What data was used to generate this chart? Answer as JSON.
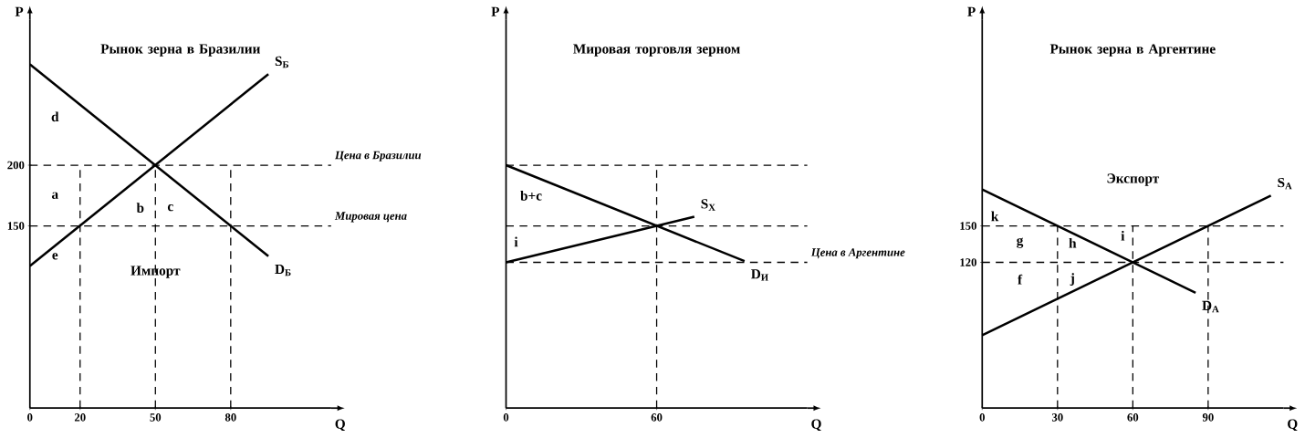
{
  "chart_data": [
    {
      "type": "line",
      "title": "Рынок зерна в Бразилии",
      "xlabel": "Q",
      "ylabel": "P",
      "marker": "none",
      "line_style": "solid",
      "xlim": [
        0,
        120
      ],
      "ylim": [
        0,
        320
      ],
      "xticks": [
        0,
        20,
        50,
        80
      ],
      "yticks": [
        150,
        200
      ],
      "series": [
        {
          "name": "S$_{Б}$",
          "color": "#000000",
          "x": [
            0,
            95
          ],
          "values": [
            117,
            275
          ]
        },
        {
          "name": "D$_{Б}$",
          "color": "#000000",
          "x": [
            0,
            95
          ],
          "values": [
            283,
            125
          ]
        }
      ],
      "ref_lines": [
        {
          "axis": "y",
          "value": 200,
          "label": "Цена в Бразилии",
          "line_style": "dashed"
        },
        {
          "axis": "y",
          "value": 150,
          "label": "Мировая цена",
          "line_style": "dashed"
        },
        {
          "axis": "x",
          "value": 20,
          "line_style": "dashed"
        },
        {
          "axis": "x",
          "value": 50,
          "line_style": "dashed"
        },
        {
          "axis": "x",
          "value": 80,
          "line_style": "dashed"
        }
      ],
      "annotations": [
        "d",
        "a",
        "b",
        "c",
        "e",
        "Импорт"
      ]
    },
    {
      "type": "line",
      "title": "Мировая торговля зерном",
      "xlabel": "Q",
      "ylabel": "P",
      "marker": "none",
      "line_style": "solid",
      "tick_labels": "x",
      "xlim": [
        0,
        120
      ],
      "ylim": [
        0,
        320
      ],
      "xticks": [
        0,
        60
      ],
      "series": [
        {
          "name": "S$_{Х}$",
          "color": "#000000",
          "x": [
            0,
            75
          ],
          "values": [
            120,
            157.5
          ]
        },
        {
          "name": "D$_{И}$",
          "color": "#000000",
          "x": [
            0,
            95
          ],
          "values": [
            200,
            121
          ]
        }
      ],
      "ref_lines": [
        {
          "axis": "y",
          "value": 200,
          "line_style": "dashed"
        },
        {
          "axis": "y",
          "value": 150,
          "line_style": "dashed"
        },
        {
          "axis": "y",
          "value": 120,
          "label": "Цена в Аргентине",
          "line_style": "dashed"
        },
        {
          "axis": "x",
          "value": 60,
          "line_style": "dashed"
        }
      ],
      "annotations": [
        "b+c",
        "i"
      ]
    },
    {
      "type": "line",
      "title": "Рынок зерна в Аргентине",
      "xlabel": "Q",
      "ylabel": "P",
      "marker": "none",
      "line_style": "solid",
      "xlim": [
        0,
        120
      ],
      "ylim": [
        0,
        320
      ],
      "xticks": [
        0,
        30,
        60,
        90
      ],
      "yticks": [
        120,
        150
      ],
      "series": [
        {
          "name": "S$_{A}$",
          "color": "#000000",
          "x": [
            0,
            115
          ],
          "values": [
            60,
            175
          ]
        },
        {
          "name": "D$_{A}$",
          "color": "#000000",
          "x": [
            0,
            85
          ],
          "values": [
            180,
            95
          ]
        }
      ],
      "ref_lines": [
        {
          "axis": "y",
          "value": 150,
          "line_style": "dashed"
        },
        {
          "axis": "y",
          "value": 120,
          "line_style": "dashed"
        },
        {
          "axis": "x",
          "value": 30,
          "line_style": "dashed"
        },
        {
          "axis": "x",
          "value": 60,
          "line_style": "dashed"
        },
        {
          "axis": "x",
          "value": 90,
          "line_style": "dashed"
        }
      ],
      "annotations": [
        "k",
        "g",
        "h",
        "i",
        "f",
        "j",
        "Экспорт"
      ]
    }
  ]
}
